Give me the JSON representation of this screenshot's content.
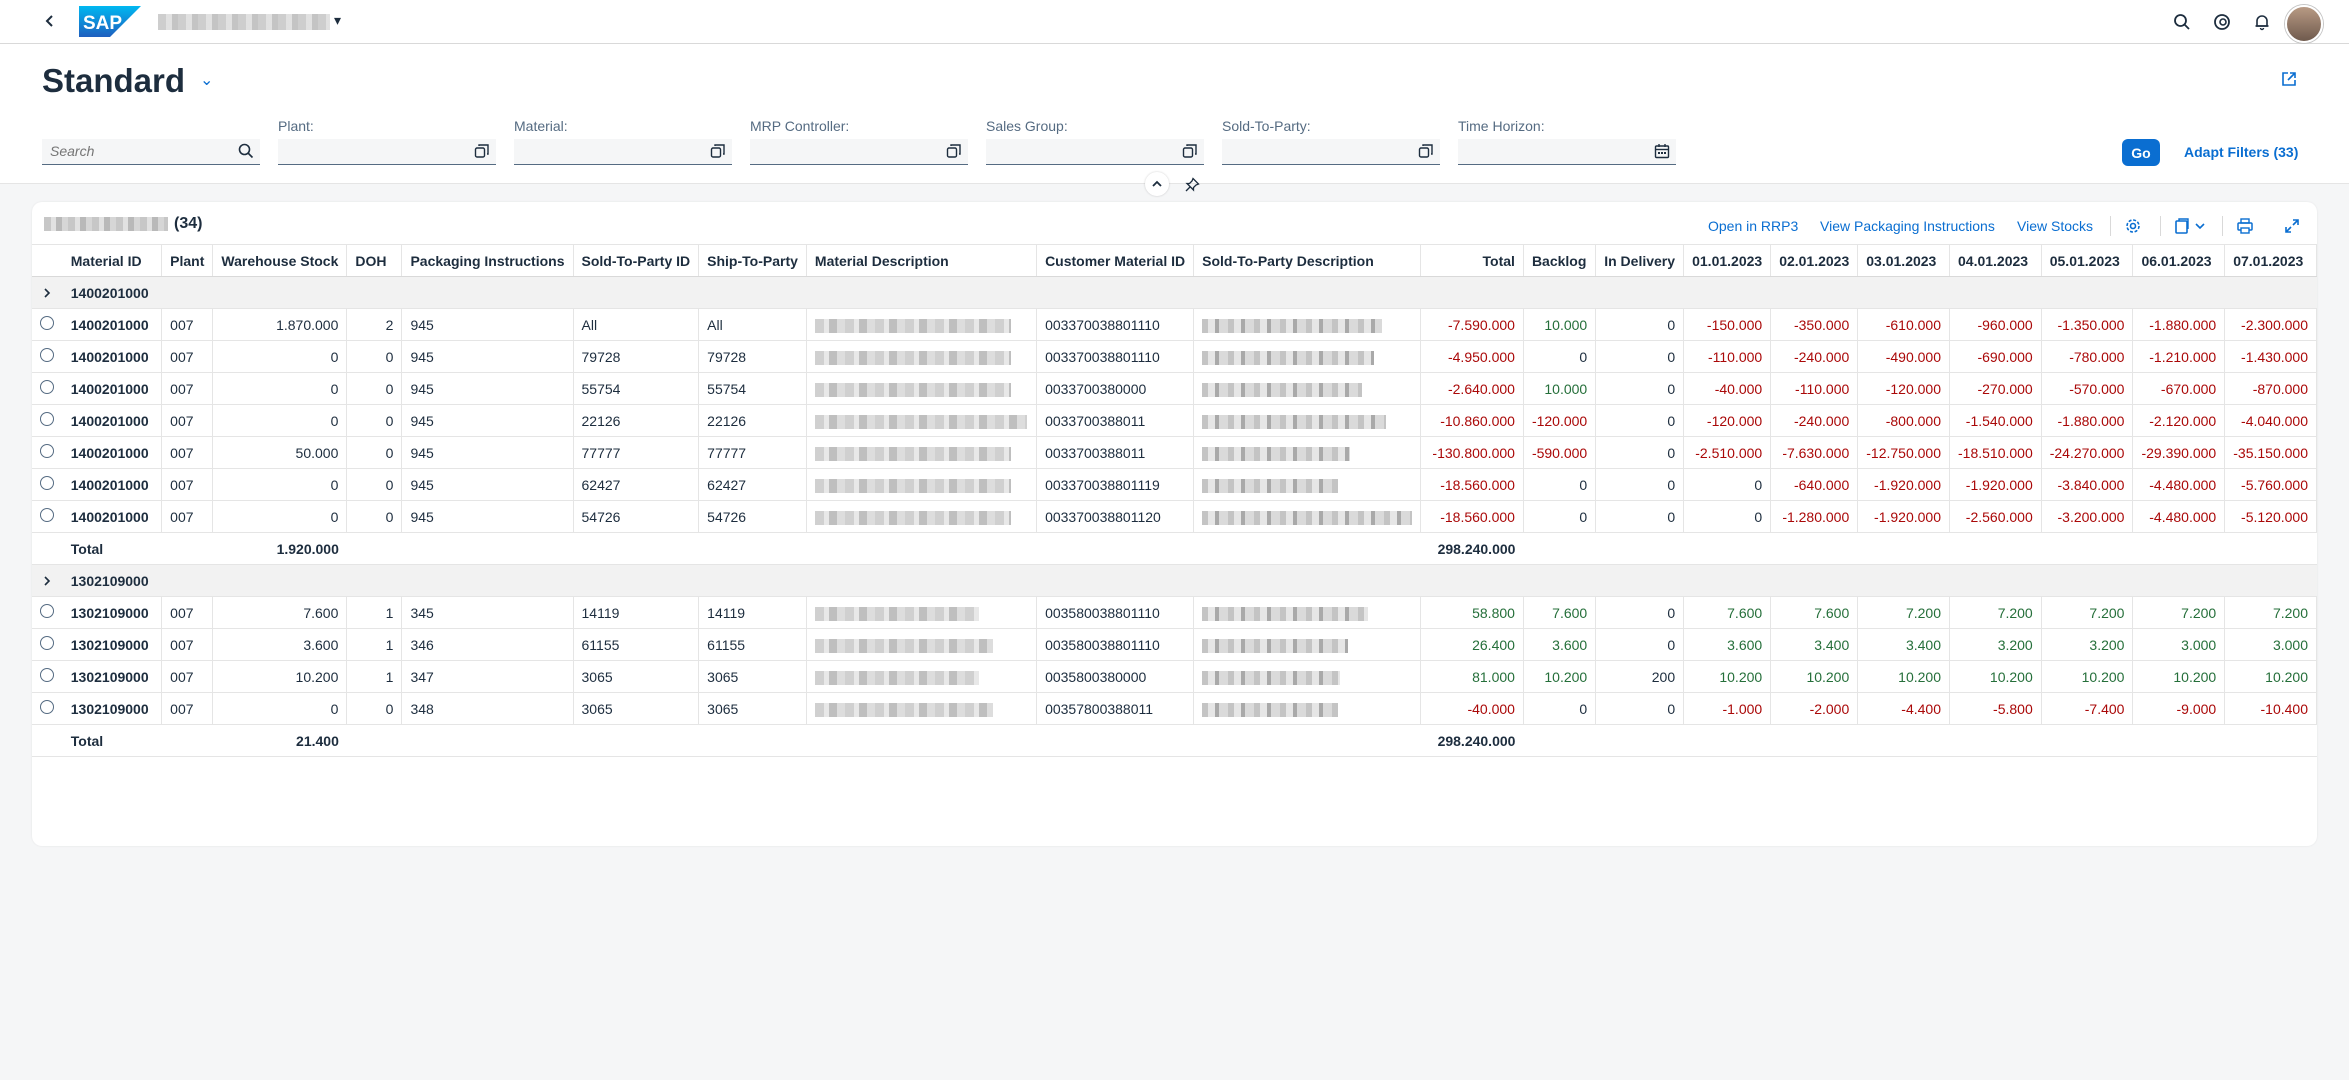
{
  "shell": {
    "back_icon": "chevron-left-icon",
    "logo_text": "SAP",
    "app_caret": "▾"
  },
  "header": {
    "title": "Standard",
    "title_caret": "⌄"
  },
  "filters": {
    "search_placeholder": "Search",
    "plant_label": "Plant:",
    "material_label": "Material:",
    "mrp_label": "MRP Controller:",
    "sales_group_label": "Sales Group:",
    "sold_to_label": "Sold-To-Party:",
    "time_horizon_label": "Time Horizon:",
    "go_label": "Go",
    "adapt_label": "Adapt Filters (33)"
  },
  "table": {
    "count": "(34)",
    "actions": {
      "open_rrp3": "Open in RRP3",
      "view_packaging": "View Packaging Instructions",
      "view_stocks": "View Stocks"
    },
    "columns": [
      "Material ID",
      "Plant",
      "Warehouse Stock",
      "DOH",
      "Packaging Instructions",
      "Sold-To-Party ID",
      "Ship-To-Party",
      "Material Description",
      "Customer Material ID",
      "Sold-To-Party Description",
      "Total",
      "Backlog",
      "In Delivery",
      "01.01.2023",
      "02.01.2023",
      "03.01.2023",
      "04.01.2023",
      "05.01.2023",
      "06.01.2023",
      "07.01.2023"
    ],
    "groups": [
      {
        "id": "1400201000",
        "rows": [
          {
            "material": "1400201000",
            "plant": "007",
            "stock": "1.870.000",
            "doh": "2",
            "pack": "945",
            "sold": "All",
            "ship": "All",
            "cust": "003370038801110",
            "total": "-7.590.000",
            "backlog": "10.000",
            "delivery": "0",
            "d": [
              "-150.000",
              "-350.000",
              "-610.000",
              "-960.000",
              "-1.350.000",
              "-1.880.000",
              "-2.300.000"
            ]
          },
          {
            "material": "1400201000",
            "plant": "007",
            "stock": "0",
            "doh": "0",
            "pack": "945",
            "sold": "79728",
            "ship": "79728",
            "cust": "003370038801110",
            "total": "-4.950.000",
            "backlog": "0",
            "delivery": "0",
            "d": [
              "-110.000",
              "-240.000",
              "-490.000",
              "-690.000",
              "-780.000",
              "-1.210.000",
              "-1.430.000"
            ]
          },
          {
            "material": "1400201000",
            "plant": "007",
            "stock": "0",
            "doh": "0",
            "pack": "945",
            "sold": "55754",
            "ship": "55754",
            "cust": "0033700380000",
            "total": "-2.640.000",
            "backlog": "10.000",
            "delivery": "0",
            "d": [
              "-40.000",
              "-110.000",
              "-120.000",
              "-270.000",
              "-570.000",
              "-670.000",
              "-870.000"
            ]
          },
          {
            "material": "1400201000",
            "plant": "007",
            "stock": "0",
            "doh": "0",
            "pack": "945",
            "sold": "22126",
            "ship": "22126",
            "cust": "0033700388011",
            "total": "-10.860.000",
            "backlog": "-120.000",
            "delivery": "0",
            "d": [
              "-120.000",
              "-240.000",
              "-800.000",
              "-1.540.000",
              "-1.880.000",
              "-2.120.000",
              "-4.040.000"
            ]
          },
          {
            "material": "1400201000",
            "plant": "007",
            "stock": "50.000",
            "doh": "0",
            "pack": "945",
            "sold": "77777",
            "ship": "77777",
            "cust": "0033700388011",
            "total": "-130.800.000",
            "backlog": "-590.000",
            "delivery": "0",
            "d": [
              "-2.510.000",
              "-7.630.000",
              "-12.750.000",
              "-18.510.000",
              "-24.270.000",
              "-29.390.000",
              "-35.150.000"
            ]
          },
          {
            "material": "1400201000",
            "plant": "007",
            "stock": "0",
            "doh": "0",
            "pack": "945",
            "sold": "62427",
            "ship": "62427",
            "cust": "003370038801119",
            "total": "-18.560.000",
            "backlog": "0",
            "delivery": "0",
            "d": [
              "0",
              "-640.000",
              "-1.920.000",
              "-1.920.000",
              "-3.840.000",
              "-4.480.000",
              "-5.760.000"
            ]
          },
          {
            "material": "1400201000",
            "plant": "007",
            "stock": "0",
            "doh": "0",
            "pack": "945",
            "sold": "54726",
            "ship": "54726",
            "cust": "003370038801120",
            "total": "-18.560.000",
            "backlog": "0",
            "delivery": "0",
            "d": [
              "0",
              "-1.280.000",
              "-1.920.000",
              "-2.560.000",
              "-3.200.000",
              "-4.480.000",
              "-5.120.000"
            ]
          }
        ],
        "total_label": "Total",
        "total_stock": "1.920.000",
        "total_total": "298.240.000"
      },
      {
        "id": "1302109000",
        "rows": [
          {
            "material": "1302109000",
            "plant": "007",
            "stock": "7.600",
            "doh": "1",
            "pack": "345",
            "sold": "14119",
            "ship": "14119",
            "cust": "003580038801110",
            "total": "58.800",
            "backlog": "7.600",
            "delivery": "0",
            "d": [
              "7.600",
              "7.600",
              "7.200",
              "7.200",
              "7.200",
              "7.200",
              "7.200"
            ]
          },
          {
            "material": "1302109000",
            "plant": "007",
            "stock": "3.600",
            "doh": "1",
            "pack": "346",
            "sold": "61155",
            "ship": "61155",
            "cust": "003580038801110",
            "total": "26.400",
            "backlog": "3.600",
            "delivery": "0",
            "d": [
              "3.600",
              "3.400",
              "3.400",
              "3.200",
              "3.200",
              "3.000",
              "3.000"
            ]
          },
          {
            "material": "1302109000",
            "plant": "007",
            "stock": "10.200",
            "doh": "1",
            "pack": "347",
            "sold": "3065",
            "ship": "3065",
            "cust": "0035800380000",
            "total": "81.000",
            "backlog": "10.200",
            "delivery": "200",
            "d": [
              "10.200",
              "10.200",
              "10.200",
              "10.200",
              "10.200",
              "10.200",
              "10.200"
            ]
          },
          {
            "material": "1302109000",
            "plant": "007",
            "stock": "0",
            "doh": "0",
            "pack": "348",
            "sold": "3065",
            "ship": "3065",
            "cust": "00357800388011",
            "total": "-40.000",
            "backlog": "0",
            "delivery": "0",
            "d": [
              "-1.000",
              "-2.000",
              "-4.400",
              "-5.800",
              "-7.400",
              "-9.000",
              "-10.400"
            ]
          }
        ],
        "total_label": "Total",
        "total_stock": "21.400",
        "total_total": "298.240.000"
      }
    ]
  },
  "colors": {
    "accent": "#0a6ed1",
    "negative": "#aa0808",
    "positive": "#256f3a"
  }
}
